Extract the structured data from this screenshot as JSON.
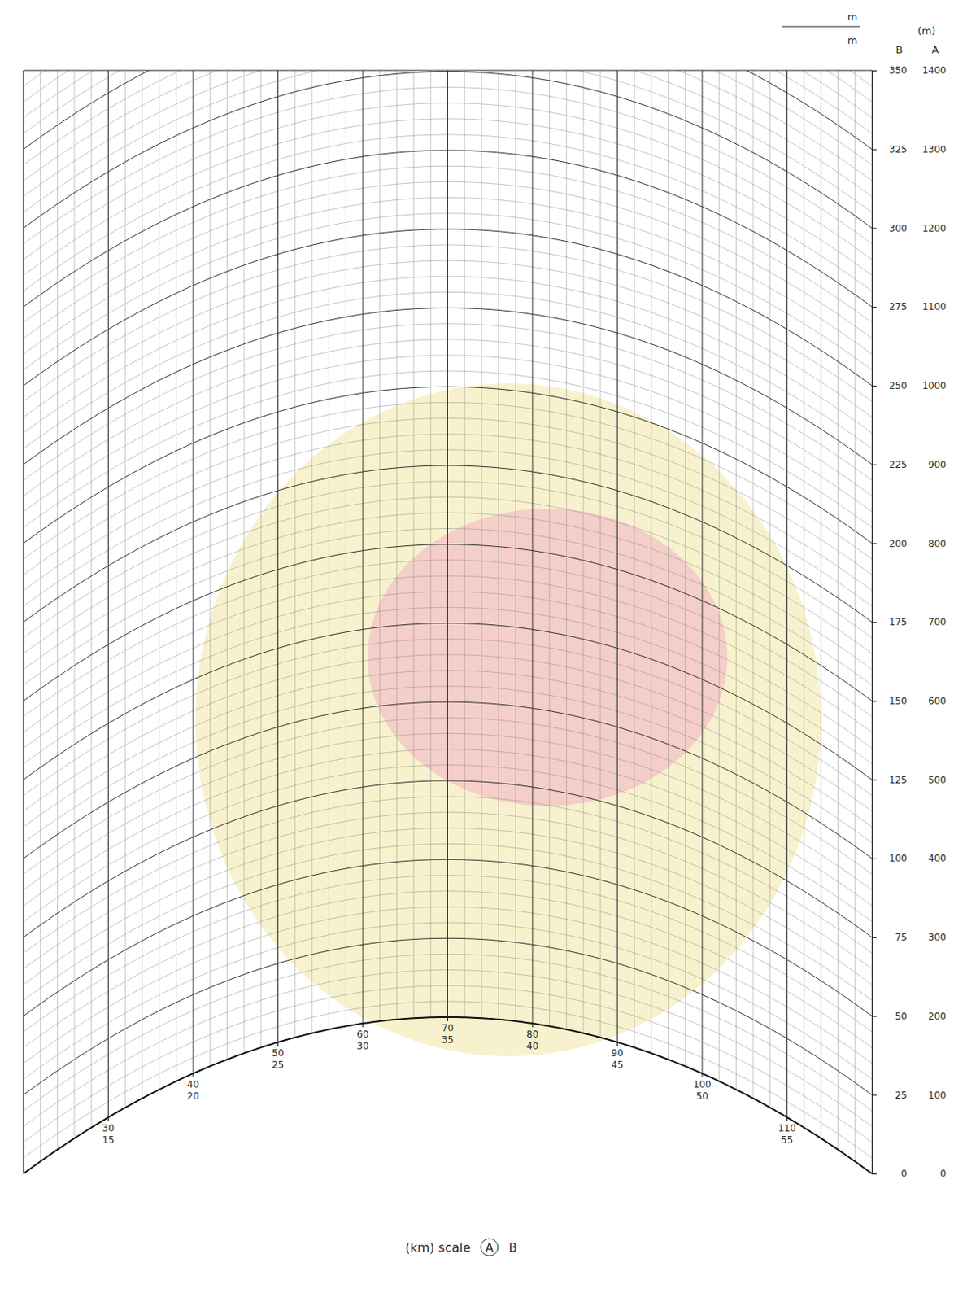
{
  "chart_data": {
    "type": "curvature_grid",
    "x_title": "(km)  scale",
    "x_label": "A",
    "x2_label": "B",
    "y_title": "(m)",
    "y_label": "A",
    "y2_label": "B",
    "annotations": [
      "m",
      "m"
    ],
    "xlim": [
      20,
      120
    ],
    "xticks": [
      30,
      40,
      50,
      60,
      70,
      80,
      90,
      100,
      110
    ],
    "x2lim": [
      10,
      60
    ],
    "x2ticks": [
      15,
      20,
      25,
      30,
      35,
      40,
      45,
      50,
      55
    ],
    "ylim": [
      0,
      1400
    ],
    "yticks": [
      0,
      100,
      200,
      300,
      400,
      500,
      600,
      700,
      800,
      900,
      1000,
      1100,
      1200,
      1300,
      1400
    ],
    "y2lim": [
      0,
      350
    ],
    "y2ticks": [
      0,
      25,
      50,
      75,
      100,
      125,
      150,
      175,
      200,
      225,
      250,
      275,
      300,
      325,
      350
    ],
    "grid": true
  }
}
